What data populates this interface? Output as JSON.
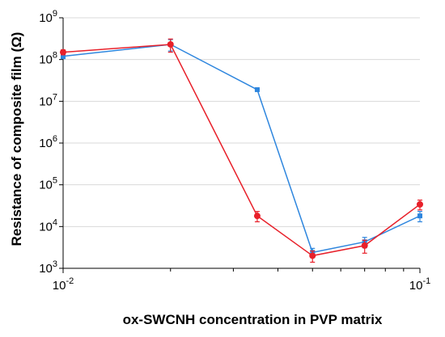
{
  "chart_data": {
    "type": "line",
    "xlabel": "ox-SWCNH concentration in PVP matrix",
    "ylabel": "Resistance of composite film (Ω)",
    "x_scale": "log",
    "y_scale": "log",
    "xlim": [
      0.01,
      0.1
    ],
    "ylim": [
      1000,
      1000000000
    ],
    "x_ticks": [
      {
        "value": 0.01,
        "base": "10",
        "exp": "-2"
      },
      {
        "value": 0.1,
        "base": "10",
        "exp": "-1"
      }
    ],
    "y_ticks": [
      {
        "value": 1000,
        "base": "10",
        "exp": "3"
      },
      {
        "value": 10000,
        "base": "10",
        "exp": "4"
      },
      {
        "value": 100000,
        "base": "10",
        "exp": "5"
      },
      {
        "value": 1000000,
        "base": "10",
        "exp": "6"
      },
      {
        "value": 10000000,
        "base": "10",
        "exp": "7"
      },
      {
        "value": 100000000,
        "base": "10",
        "exp": "8"
      },
      {
        "value": 1000000000,
        "base": "10",
        "exp": "9"
      }
    ],
    "grid": "horizontal",
    "series": [
      {
        "color": "#2e86de",
        "marker": "square",
        "x": [
          0.01,
          0.02,
          0.035,
          0.05,
          0.07,
          0.1
        ],
        "y": [
          120000000,
          230000000,
          19000000,
          2400,
          4300,
          18000
        ],
        "err": [
          15000000,
          70000000,
          4000,
          600,
          1200,
          5000
        ]
      },
      {
        "color": "#e8202a",
        "marker": "circle",
        "x": [
          0.01,
          0.02,
          0.035,
          0.05,
          0.07,
          0.1
        ],
        "y": [
          150000000,
          230000000,
          18000,
          2000,
          3500,
          34000
        ],
        "err": [
          20000000,
          80000000,
          5000,
          600,
          1200,
          9000
        ]
      }
    ]
  }
}
